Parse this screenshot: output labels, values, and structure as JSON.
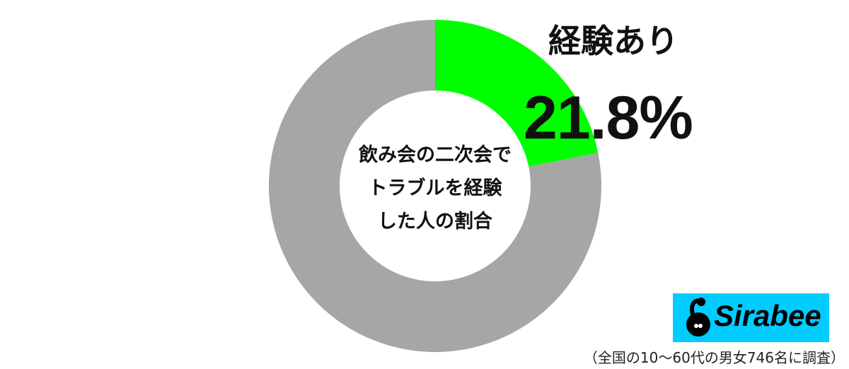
{
  "chart_data": {
    "type": "pie",
    "title": "飲み会の二次会でトラブルを経験した人の割合",
    "title_lines": [
      "飲み会の二次会で",
      "トラブルを経験",
      "した人の割合"
    ],
    "slices": [
      {
        "name": "経験あり",
        "value": 21.8,
        "label": "21.8%",
        "color": "#00ff00"
      },
      {
        "value": 78.2,
        "color": "#a6a6a6"
      }
    ],
    "donut": true
  },
  "logo": {
    "text": "Sirabee",
    "color": "#00ccff"
  },
  "footnote": "（全国の10〜60代の男女746名に調査）"
}
